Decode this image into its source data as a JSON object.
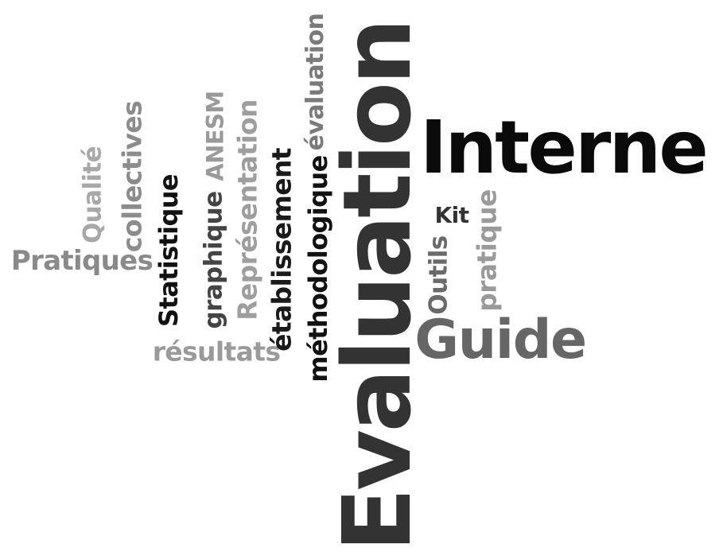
{
  "words": [
    {
      "id": "evaluation-main",
      "text": "Evaluation",
      "color": "#333333"
    },
    {
      "id": "interne",
      "text": "Interne",
      "color": "#0a0a0a"
    },
    {
      "id": "guide",
      "text": "Guide",
      "color": "#666666"
    },
    {
      "id": "pratiques",
      "text": "Pratiques",
      "color": "#8a8a8a"
    },
    {
      "id": "resultats",
      "text": "résultats",
      "color": "#9a9a9a"
    },
    {
      "id": "qualite",
      "text": "Qualité",
      "color": "#a8a8a8"
    },
    {
      "id": "collectives",
      "text": "collectives",
      "color": "#8c8c8c"
    },
    {
      "id": "statistique",
      "text": "Statistique",
      "color": "#111111"
    },
    {
      "id": "graphique",
      "text": "graphique",
      "color": "#444444"
    },
    {
      "id": "anesm",
      "text": "ANESM",
      "color": "#9a9a9a"
    },
    {
      "id": "representation",
      "text": "Représentation",
      "color": "#9e9e9e"
    },
    {
      "id": "etablissement",
      "text": "établissement",
      "color": "#1a1a1a"
    },
    {
      "id": "methodologique",
      "text": "méthodologique",
      "color": "#111111"
    },
    {
      "id": "evaluation-small",
      "text": "évaluation",
      "color": "#7a7a7a"
    },
    {
      "id": "kit",
      "text": "Kit",
      "color": "#333333"
    },
    {
      "id": "outils",
      "text": "Outils",
      "color": "#6a6a6a"
    },
    {
      "id": "pratique",
      "text": "pratique",
      "color": "#9a9a9a"
    }
  ]
}
